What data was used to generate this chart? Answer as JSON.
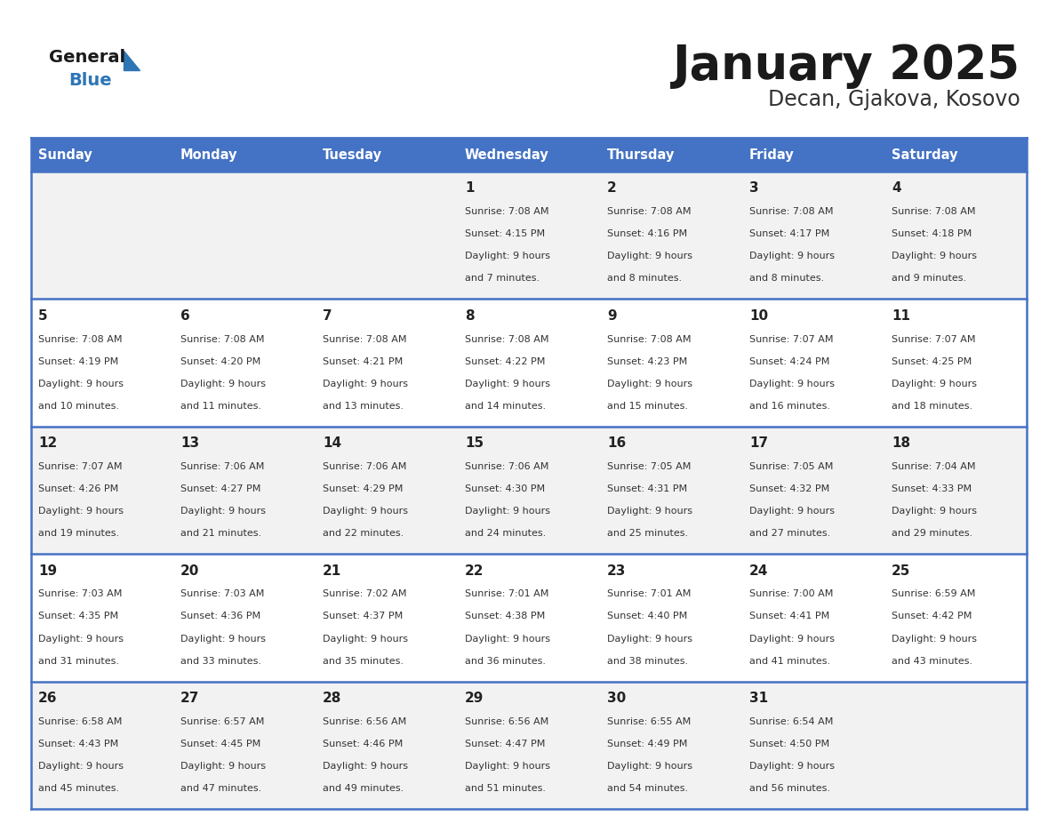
{
  "title": "January 2025",
  "subtitle": "Decan, Gjakova, Kosovo",
  "days_of_week": [
    "Sunday",
    "Monday",
    "Tuesday",
    "Wednesday",
    "Thursday",
    "Friday",
    "Saturday"
  ],
  "header_bg": "#4472C4",
  "header_text": "#FFFFFF",
  "row_bg_odd": "#F2F2F2",
  "row_bg_even": "#FFFFFF",
  "cell_text_color": "#333333",
  "day_num_color": "#222222",
  "border_color": "#4472C4",
  "title_color": "#1a1a1a",
  "subtitle_color": "#333333",
  "logo_general_color": "#1a1a1a",
  "logo_blue_color": "#2E75B6",
  "calendar_data": [
    [
      null,
      null,
      null,
      {
        "day": 1,
        "sunrise": "7:08 AM",
        "sunset": "4:15 PM",
        "daylight": "9 hours and 7 minutes."
      },
      {
        "day": 2,
        "sunrise": "7:08 AM",
        "sunset": "4:16 PM",
        "daylight": "9 hours and 8 minutes."
      },
      {
        "day": 3,
        "sunrise": "7:08 AM",
        "sunset": "4:17 PM",
        "daylight": "9 hours and 8 minutes."
      },
      {
        "day": 4,
        "sunrise": "7:08 AM",
        "sunset": "4:18 PM",
        "daylight": "9 hours and 9 minutes."
      }
    ],
    [
      {
        "day": 5,
        "sunrise": "7:08 AM",
        "sunset": "4:19 PM",
        "daylight": "9 hours and 10 minutes."
      },
      {
        "day": 6,
        "sunrise": "7:08 AM",
        "sunset": "4:20 PM",
        "daylight": "9 hours and 11 minutes."
      },
      {
        "day": 7,
        "sunrise": "7:08 AM",
        "sunset": "4:21 PM",
        "daylight": "9 hours and 13 minutes."
      },
      {
        "day": 8,
        "sunrise": "7:08 AM",
        "sunset": "4:22 PM",
        "daylight": "9 hours and 14 minutes."
      },
      {
        "day": 9,
        "sunrise": "7:08 AM",
        "sunset": "4:23 PM",
        "daylight": "9 hours and 15 minutes."
      },
      {
        "day": 10,
        "sunrise": "7:07 AM",
        "sunset": "4:24 PM",
        "daylight": "9 hours and 16 minutes."
      },
      {
        "day": 11,
        "sunrise": "7:07 AM",
        "sunset": "4:25 PM",
        "daylight": "9 hours and 18 minutes."
      }
    ],
    [
      {
        "day": 12,
        "sunrise": "7:07 AM",
        "sunset": "4:26 PM",
        "daylight": "9 hours and 19 minutes."
      },
      {
        "day": 13,
        "sunrise": "7:06 AM",
        "sunset": "4:27 PM",
        "daylight": "9 hours and 21 minutes."
      },
      {
        "day": 14,
        "sunrise": "7:06 AM",
        "sunset": "4:29 PM",
        "daylight": "9 hours and 22 minutes."
      },
      {
        "day": 15,
        "sunrise": "7:06 AM",
        "sunset": "4:30 PM",
        "daylight": "9 hours and 24 minutes."
      },
      {
        "day": 16,
        "sunrise": "7:05 AM",
        "sunset": "4:31 PM",
        "daylight": "9 hours and 25 minutes."
      },
      {
        "day": 17,
        "sunrise": "7:05 AM",
        "sunset": "4:32 PM",
        "daylight": "9 hours and 27 minutes."
      },
      {
        "day": 18,
        "sunrise": "7:04 AM",
        "sunset": "4:33 PM",
        "daylight": "9 hours and 29 minutes."
      }
    ],
    [
      {
        "day": 19,
        "sunrise": "7:03 AM",
        "sunset": "4:35 PM",
        "daylight": "9 hours and 31 minutes."
      },
      {
        "day": 20,
        "sunrise": "7:03 AM",
        "sunset": "4:36 PM",
        "daylight": "9 hours and 33 minutes."
      },
      {
        "day": 21,
        "sunrise": "7:02 AM",
        "sunset": "4:37 PM",
        "daylight": "9 hours and 35 minutes."
      },
      {
        "day": 22,
        "sunrise": "7:01 AM",
        "sunset": "4:38 PM",
        "daylight": "9 hours and 36 minutes."
      },
      {
        "day": 23,
        "sunrise": "7:01 AM",
        "sunset": "4:40 PM",
        "daylight": "9 hours and 38 minutes."
      },
      {
        "day": 24,
        "sunrise": "7:00 AM",
        "sunset": "4:41 PM",
        "daylight": "9 hours and 41 minutes."
      },
      {
        "day": 25,
        "sunrise": "6:59 AM",
        "sunset": "4:42 PM",
        "daylight": "9 hours and 43 minutes."
      }
    ],
    [
      {
        "day": 26,
        "sunrise": "6:58 AM",
        "sunset": "4:43 PM",
        "daylight": "9 hours and 45 minutes."
      },
      {
        "day": 27,
        "sunrise": "6:57 AM",
        "sunset": "4:45 PM",
        "daylight": "9 hours and 47 minutes."
      },
      {
        "day": 28,
        "sunrise": "6:56 AM",
        "sunset": "4:46 PM",
        "daylight": "9 hours and 49 minutes."
      },
      {
        "day": 29,
        "sunrise": "6:56 AM",
        "sunset": "4:47 PM",
        "daylight": "9 hours and 51 minutes."
      },
      {
        "day": 30,
        "sunrise": "6:55 AM",
        "sunset": "4:49 PM",
        "daylight": "9 hours and 54 minutes."
      },
      {
        "day": 31,
        "sunrise": "6:54 AM",
        "sunset": "4:50 PM",
        "daylight": "9 hours and 56 minutes."
      },
      null
    ]
  ]
}
